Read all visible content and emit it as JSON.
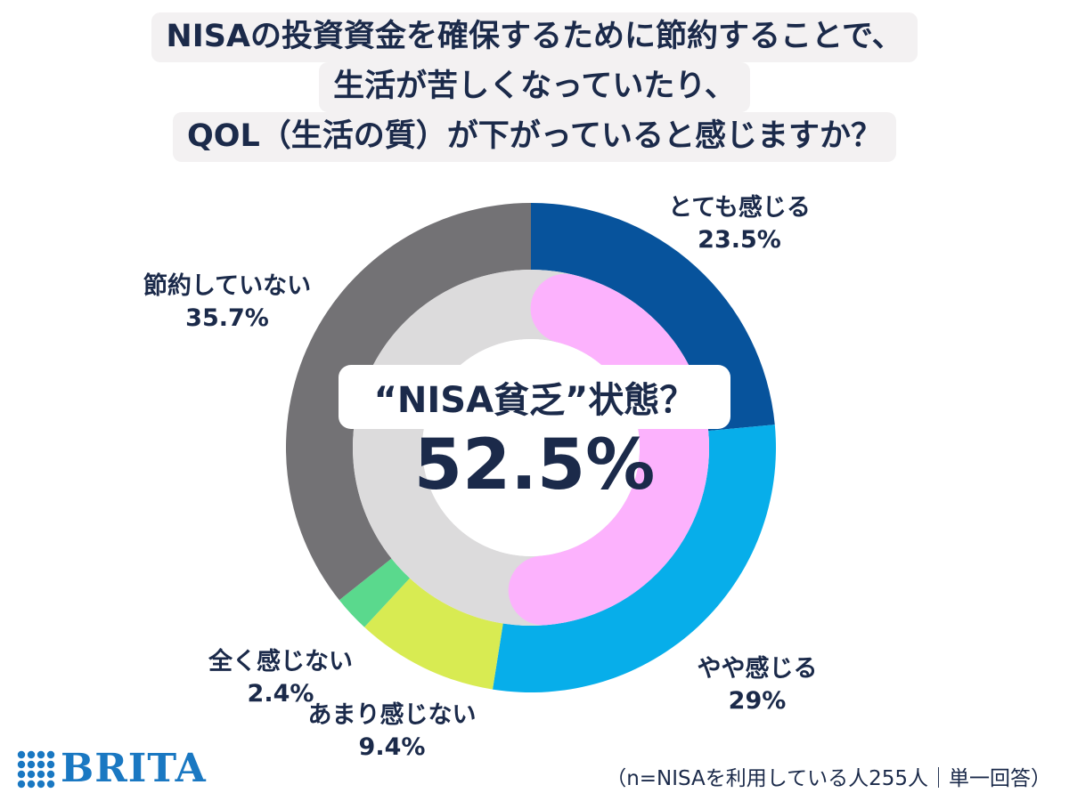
{
  "title": {
    "lines": [
      "NISAの投資資金を確保するために節約することで、",
      "生活が苦しくなっていたり、",
      "QOL（生活の質）が下がっていると感じますか？"
    ]
  },
  "center": {
    "label": "“NISA貧乏”状態？",
    "value": "52.5%"
  },
  "chart_data": {
    "type": "pie",
    "categories": [
      "とても感じる",
      "やや感じる",
      "あまり感じない",
      "全く感じない",
      "節約していない"
    ],
    "values": [
      23.5,
      29,
      9.4,
      2.4,
      35.7
    ],
    "value_labels": [
      "23.5%",
      "29%",
      "9.4%",
      "2.4%",
      "35.7%"
    ],
    "colors": [
      "#07539c",
      "#07aeea",
      "#d8eb52",
      "#5ad98d",
      "#737275"
    ],
    "inner_ring": {
      "label": "“NISA貧乏”状態？",
      "value": 52.5,
      "value_label": "52.5%",
      "color": "#fcb2fd",
      "background_color": "#dcdbdc"
    },
    "start_angle": "12 o'clock",
    "direction": "clockwise"
  },
  "footer": {
    "brand": "BRITA",
    "brand_color": "#1a78c2",
    "note": "（n=NISAを利用している人255人｜単一回答）"
  }
}
